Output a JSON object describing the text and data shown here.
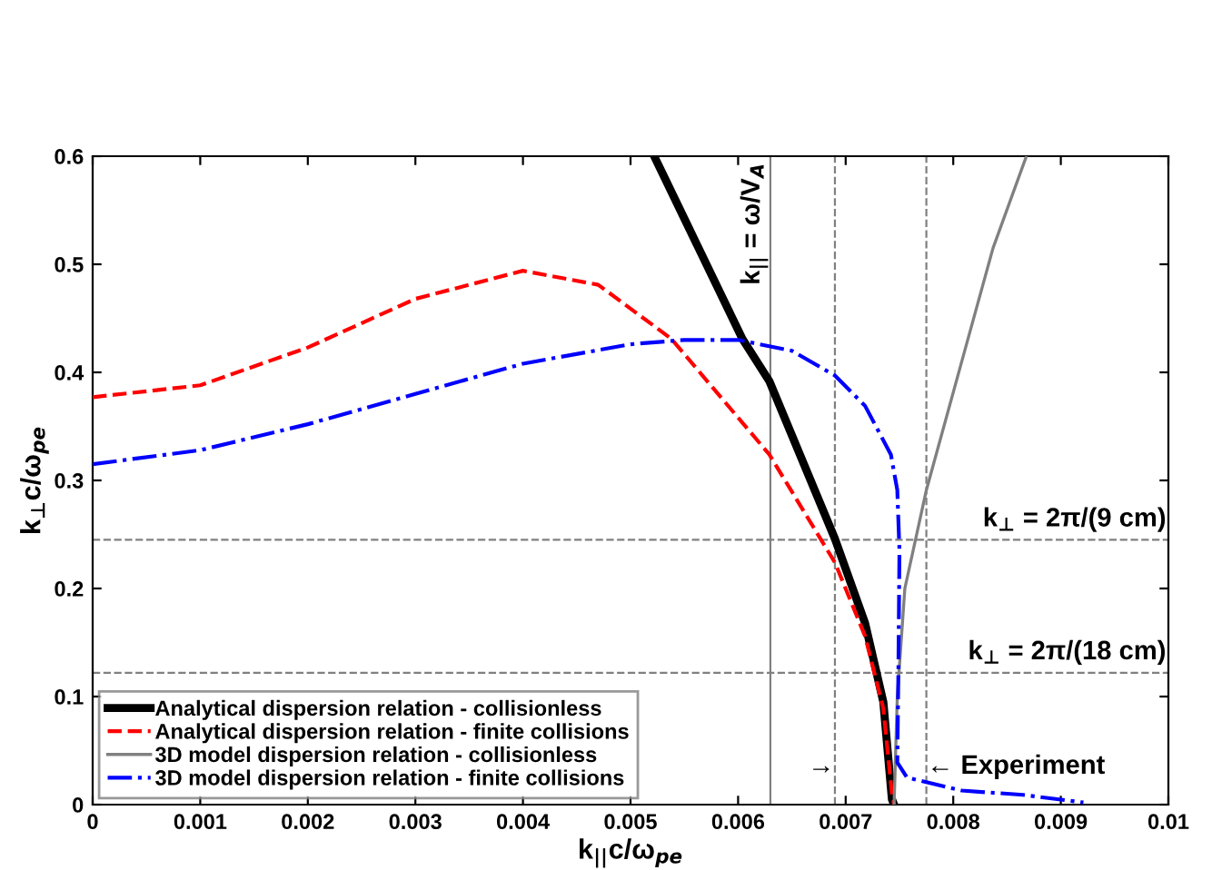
{
  "chart_data": {
    "type": "line",
    "xlabel": "k$_{||}$c/ω$_{pe}$",
    "ylabel": "k$_{⊥}$c/ω$_{pe}$",
    "xlim": [
      0,
      0.01
    ],
    "ylim": [
      0,
      0.6
    ],
    "xticks": [
      0,
      0.001,
      0.002,
      0.003,
      0.004,
      0.005,
      0.006,
      0.007,
      0.008,
      0.009,
      0.01
    ],
    "yticks": [
      0,
      0.1,
      0.2,
      0.3,
      0.4,
      0.5,
      0.6
    ],
    "grid": false,
    "legend": "bottom left",
    "marker": "none",
    "series": [
      {
        "name": "Analytical dispersion relation - collisionless",
        "color": "#000000",
        "line_style": "solid",
        "x": [
          0.00522,
          0.00604,
          0.00629,
          0.0069,
          0.00718,
          0.00735,
          0.00743,
          0.00745
        ],
        "values": [
          0.6,
          0.431,
          0.392,
          0.246,
          0.168,
          0.095,
          0.005,
          0
        ]
      },
      {
        "name": "Analytical dispersion relation - finite collisions",
        "color": "#ff0000",
        "line_style": "dashed",
        "x": [
          0,
          0.001,
          0.002,
          0.003,
          0.004,
          0.0047,
          0.00538,
          0.00629,
          0.0069,
          0.00718,
          0.00735,
          0.00743,
          0.00745
        ],
        "values": [
          0.377,
          0.388,
          0.423,
          0.468,
          0.494,
          0.481,
          0.431,
          0.324,
          0.224,
          0.156,
          0.089,
          0.01,
          0
        ]
      },
      {
        "name": "3D model dispersion relation - collisionless",
        "color": "#808080",
        "line_style": "solid",
        "x": [
          0.00745,
          0.00748,
          0.00755,
          0.00775,
          0.00809,
          0.00837,
          0.00868
        ],
        "values": [
          0,
          0.1,
          0.2,
          0.291,
          0.414,
          0.515,
          0.6
        ]
      },
      {
        "name": "3D model dispersion relation - finite collisions",
        "color": "#0000ff",
        "line_style": "dashdot",
        "x": [
          0,
          0.001,
          0.002,
          0.003,
          0.004,
          0.005,
          0.0055,
          0.006,
          0.0065,
          0.0069,
          0.00718,
          0.00742,
          0.00748,
          0.0075,
          0.00749,
          0.00748,
          0.00757,
          0.00808,
          0.00865,
          0.00921
        ],
        "values": [
          0.315,
          0.328,
          0.352,
          0.38,
          0.408,
          0.426,
          0.43,
          0.43,
          0.42,
          0.397,
          0.369,
          0.324,
          0.291,
          0.235,
          0.123,
          0.039,
          0.025,
          0.013,
          0.009,
          0.002
        ]
      }
    ],
    "ref_lines": [
      {
        "axis": "x",
        "value": 0.0063,
        "label": "k$_{||}$ = ω/V$_{A}$",
        "color": "#808080",
        "line_style": "solid"
      },
      {
        "axis": "x",
        "value": 0.0069,
        "color": "#808080",
        "line_style": "dashed"
      },
      {
        "axis": "x",
        "value": 0.00775,
        "color": "#808080",
        "line_style": "dashed"
      },
      {
        "axis": "y",
        "value": 0.245,
        "color": "#808080",
        "line_style": "dashed"
      },
      {
        "axis": "y",
        "value": 0.122,
        "color": "#808080",
        "line_style": "dashed"
      }
    ],
    "annotations": [
      {
        "text": "k$_{⊥}$ = 2π/(9 cm)",
        "x": 0.01,
        "y": 0.245
      },
      {
        "text": "k$_{⊥}$ = 2π/(18 cm)",
        "x": 0.01,
        "y": 0.122
      },
      {
        "text": "→",
        "x": 0.0069,
        "y": 0.035
      },
      {
        "text": "← Experiment",
        "x": 0.00775,
        "y": 0.035
      }
    ]
  }
}
